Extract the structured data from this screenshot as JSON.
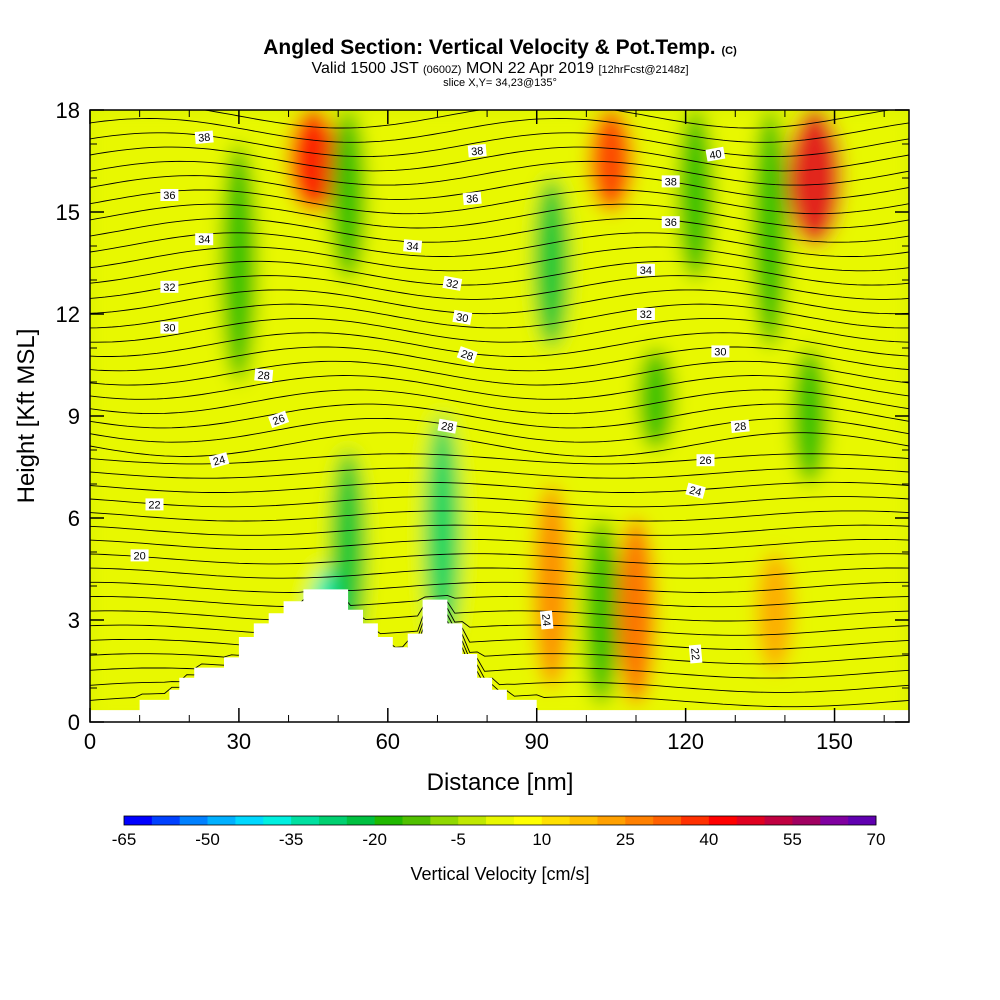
{
  "title": {
    "main": "Angled Section: Vertical Velocity & Pot.Temp.",
    "main_suffix": "(C)",
    "valid_prefix": "Valid 1500 JST",
    "valid_utc": "(0600Z)",
    "valid_date": "MON 22 Apr 2019",
    "forecast": "[12hrFcst@2148z]",
    "slice": "slice X,Y= 34,23@135°"
  },
  "chart_data": {
    "type": "heatmap",
    "xlabel": "Distance [nm]",
    "ylabel": "Height [Kft MSL]",
    "xlim": [
      0,
      165
    ],
    "ylim": [
      0,
      18
    ],
    "x_ticks": [
      0,
      30,
      60,
      90,
      120,
      150
    ],
    "x_tick_labels": [
      "0",
      "30",
      "60",
      "90",
      "120",
      "150"
    ],
    "y_ticks": [
      0,
      3,
      6,
      9,
      12,
      15,
      18
    ],
    "y_tick_labels": [
      "0",
      "3",
      "6",
      "9",
      "12",
      "15",
      "18"
    ],
    "colorbar": {
      "title": "Vertical Velocity [cm/s]",
      "min": -65,
      "max": 70,
      "labels": [
        "-65",
        "-50",
        "-35",
        "-20",
        "-5",
        "10",
        "25",
        "40",
        "55",
        "70"
      ],
      "colors": [
        "#0000ff",
        "#0040ff",
        "#0080ff",
        "#00b0ff",
        "#00d8ff",
        "#00f0e0",
        "#00e0a0",
        "#00d070",
        "#00c040",
        "#20b800",
        "#50c000",
        "#90d800",
        "#c0e800",
        "#e8f800",
        "#ffff00",
        "#ffe000",
        "#ffc000",
        "#ffa000",
        "#ff8000",
        "#ff6000",
        "#ff3000",
        "#ff0000",
        "#e00020",
        "#c00040",
        "#a00060",
        "#8000a0",
        "#6000b0"
      ]
    },
    "velocity_features": [
      {
        "x": 48,
        "ymin": 0,
        "ymax": 4.5,
        "w": -40,
        "note": "downdraft lee"
      },
      {
        "x": 52,
        "ymin": 2,
        "ymax": 8,
        "w": -25
      },
      {
        "x": 71,
        "ymin": 2,
        "ymax": 9,
        "w": -30
      },
      {
        "x": 93,
        "ymin": 1,
        "ymax": 7,
        "w": 30
      },
      {
        "x": 103,
        "ymin": 0.5,
        "ymax": 6,
        "w": -20
      },
      {
        "x": 110,
        "ymin": 0.5,
        "ymax": 6,
        "w": 35
      },
      {
        "x": 114,
        "ymin": 8,
        "ymax": 11,
        "w": -20
      },
      {
        "x": 138,
        "ymin": 1.5,
        "ymax": 5,
        "w": 25
      },
      {
        "x": 145,
        "ymin": 7,
        "ymax": 11,
        "w": -20
      },
      {
        "x": 45,
        "ymin": 15,
        "ymax": 18,
        "w": 45
      },
      {
        "x": 105,
        "ymin": 15,
        "ymax": 18,
        "w": 40
      },
      {
        "x": 146,
        "ymin": 14,
        "ymax": 18,
        "w": 50
      },
      {
        "x": 30,
        "ymin": 10,
        "ymax": 17,
        "w": -20
      },
      {
        "x": 52,
        "ymin": 13,
        "ymax": 18,
        "w": -20
      },
      {
        "x": 93,
        "ymin": 11,
        "ymax": 16,
        "w": -25
      },
      {
        "x": 122,
        "ymin": 13,
        "ymax": 18,
        "w": -20
      },
      {
        "x": 137,
        "ymin": 11,
        "ymax": 18,
        "w": -20
      }
    ],
    "theta_contours": [
      {
        "value": 20,
        "label": "20"
      },
      {
        "value": 22,
        "label": "22"
      },
      {
        "value": 24,
        "label": "24"
      },
      {
        "value": 26,
        "label": "26"
      },
      {
        "value": 28,
        "label": "28"
      },
      {
        "value": 30,
        "label": "30"
      },
      {
        "value": 32,
        "label": "32"
      },
      {
        "value": 34,
        "label": "34"
      },
      {
        "value": 36,
        "label": "36"
      },
      {
        "value": 38,
        "label": "38"
      },
      {
        "value": 40,
        "label": "40"
      }
    ],
    "contour_labels": [
      {
        "x": 23,
        "y": 17.2,
        "text": "38",
        "angle": 5
      },
      {
        "x": 16,
        "y": 15.5,
        "text": "36",
        "angle": 0
      },
      {
        "x": 23,
        "y": 14.2,
        "text": "34",
        "angle": 0
      },
      {
        "x": 16,
        "y": 12.8,
        "text": "32",
        "angle": 0
      },
      {
        "x": 16,
        "y": 11.6,
        "text": "30",
        "angle": 0
      },
      {
        "x": 35,
        "y": 10.2,
        "text": "28",
        "angle": -5
      },
      {
        "x": 38,
        "y": 8.9,
        "text": "26",
        "angle": 20
      },
      {
        "x": 26,
        "y": 7.7,
        "text": "24",
        "angle": 15
      },
      {
        "x": 13,
        "y": 6.4,
        "text": "22",
        "angle": 0
      },
      {
        "x": 10,
        "y": 4.9,
        "text": "20",
        "angle": 0
      },
      {
        "x": 78,
        "y": 16.8,
        "text": "38",
        "angle": 5
      },
      {
        "x": 77,
        "y": 15.4,
        "text": "36",
        "angle": 5
      },
      {
        "x": 65,
        "y": 14.0,
        "text": "34",
        "angle": -5
      },
      {
        "x": 73,
        "y": 12.9,
        "text": "32",
        "angle": -10
      },
      {
        "x": 75,
        "y": 11.9,
        "text": "30",
        "angle": -10
      },
      {
        "x": 76,
        "y": 10.8,
        "text": "28",
        "angle": -20
      },
      {
        "x": 72,
        "y": 8.7,
        "text": "28",
        "angle": -10
      },
      {
        "x": 126,
        "y": 16.7,
        "text": "40",
        "angle": 10
      },
      {
        "x": 117,
        "y": 15.9,
        "text": "38",
        "angle": 0
      },
      {
        "x": 117,
        "y": 14.7,
        "text": "36",
        "angle": 0
      },
      {
        "x": 112,
        "y": 13.3,
        "text": "34",
        "angle": 0
      },
      {
        "x": 112,
        "y": 12.0,
        "text": "32",
        "angle": 0
      },
      {
        "x": 127,
        "y": 10.9,
        "text": "30",
        "angle": 0
      },
      {
        "x": 131,
        "y": 8.7,
        "text": "28",
        "angle": 5
      },
      {
        "x": 124,
        "y": 7.7,
        "text": "26",
        "angle": 0
      },
      {
        "x": 122,
        "y": 6.8,
        "text": "24",
        "angle": -15
      },
      {
        "x": 92,
        "y": 3.0,
        "text": "24",
        "angle": -85
      },
      {
        "x": 122,
        "y": 2.0,
        "text": "22",
        "angle": -85
      }
    ],
    "terrain": [
      [
        0,
        0.35
      ],
      [
        10,
        0.35
      ],
      [
        10,
        0.65
      ],
      [
        16,
        0.65
      ],
      [
        16,
        0.95
      ],
      [
        18,
        0.95
      ],
      [
        18,
        1.3
      ],
      [
        21,
        1.3
      ],
      [
        21,
        1.6
      ],
      [
        24,
        1.6
      ],
      [
        24,
        1.6
      ],
      [
        27,
        1.6
      ],
      [
        27,
        1.9
      ],
      [
        30,
        1.9
      ],
      [
        30,
        2.5
      ],
      [
        33,
        2.5
      ],
      [
        33,
        2.9
      ],
      [
        36,
        2.9
      ],
      [
        36,
        3.2
      ],
      [
        39,
        3.2
      ],
      [
        39,
        3.55
      ],
      [
        43,
        3.55
      ],
      [
        43,
        3.9
      ],
      [
        52,
        3.9
      ],
      [
        52,
        3.3
      ],
      [
        55,
        3.3
      ],
      [
        55,
        2.9
      ],
      [
        58,
        2.9
      ],
      [
        58,
        2.5
      ],
      [
        61,
        2.5
      ],
      [
        61,
        2.2
      ],
      [
        64,
        2.2
      ],
      [
        64,
        2.6
      ],
      [
        67,
        2.6
      ],
      [
        67,
        3.6
      ],
      [
        72,
        3.6
      ],
      [
        72,
        2.9
      ],
      [
        75,
        2.9
      ],
      [
        75,
        2.0
      ],
      [
        78,
        2.0
      ],
      [
        78,
        1.3
      ],
      [
        81,
        1.3
      ],
      [
        81,
        0.95
      ],
      [
        84,
        0.95
      ],
      [
        84,
        0.65
      ],
      [
        90,
        0.65
      ],
      [
        90,
        0.35
      ],
      [
        165,
        0.35
      ]
    ]
  }
}
